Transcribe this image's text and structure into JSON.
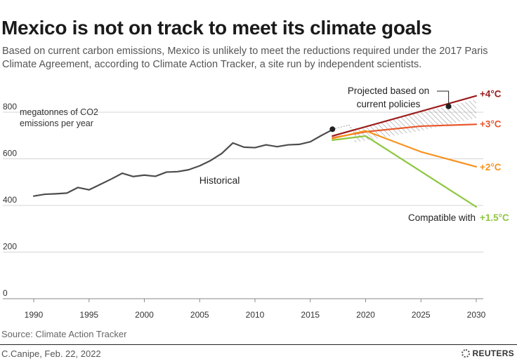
{
  "header": {
    "title": "Mexico is not on track to meet its climate goals",
    "subtitle": "Based on current carbon emissions, Mexico is unlikely to meet the reductions required under the 2017 Paris Climate Agreement, according to Climate Action Tracker, a site run by independent scientists."
  },
  "footer": {
    "source": "Source: Climate Action Tracker",
    "credit": "C.Canipe, Feb. 22, 2022",
    "logo": "REUTERS"
  },
  "chart_data": {
    "type": "line",
    "title": "Mexico is not on track to meet its climate goals",
    "ylabel": "megatonnes of CO2 emissions per year",
    "ylabel_lines": [
      "megatonnes of CO2",
      "emissions per year"
    ],
    "xlabel": "",
    "xlim": [
      1989,
      2030.5
    ],
    "ylim": [
      0,
      800
    ],
    "x_ticks": [
      1990,
      1995,
      2000,
      2005,
      2010,
      2015,
      2020,
      2025,
      2030
    ],
    "y_ticks": [
      0,
      200,
      400,
      600,
      800
    ],
    "grid": "horizontal",
    "series": [
      {
        "name": "Historical",
        "label": "Historical",
        "color": "#4d4d4d",
        "x": [
          1990,
          1991,
          1992,
          1993,
          1994,
          1995,
          1996,
          1997,
          1998,
          1999,
          2000,
          2001,
          2002,
          2003,
          2004,
          2005,
          2006,
          2007,
          2008,
          2009,
          2010,
          2011,
          2012,
          2013,
          2014,
          2015,
          2016,
          2017
        ],
        "y": [
          440,
          448,
          450,
          453,
          477,
          467,
          490,
          513,
          538,
          524,
          530,
          525,
          543,
          545,
          553,
          570,
          593,
          623,
          668,
          650,
          648,
          660,
          652,
          660,
          662,
          673,
          700,
          725
        ]
      },
      {
        "name": "+4°C",
        "label": "+4°C",
        "color": "#9b1b1b",
        "x": [
          2017,
          2030
        ],
        "y": [
          698,
          870
        ]
      },
      {
        "name": "+3°C",
        "label": "+3°C",
        "color": "#e8562a",
        "x": [
          2017,
          2020,
          2025,
          2030
        ],
        "y": [
          690,
          716,
          740,
          748
        ]
      },
      {
        "name": "+2°C",
        "label": "+2°C",
        "color": "#f7931e",
        "x": [
          2017,
          2020,
          2025,
          2030
        ],
        "y": [
          687,
          720,
          630,
          566
        ]
      },
      {
        "name": "+1.5°C",
        "label": "+1.5°C",
        "color": "#8dc63f",
        "x": [
          2017,
          2020,
          2030
        ],
        "y": [
          680,
          698,
          394
        ]
      }
    ],
    "projection_band": {
      "name": "Projected based on current policies",
      "x": [
        2019,
        2025,
        2030
      ],
      "y_low": [
        670,
        720,
        775
      ],
      "y_high": [
        720,
        800,
        855
      ]
    },
    "annotations": [
      {
        "text_lines": [
          "Projected based on",
          "current policies"
        ],
        "point": [
          2027.5,
          825
        ]
      },
      {
        "text": "Compatible with",
        "anchor_series": "+1.5°C"
      }
    ],
    "markers": [
      {
        "x": 2017,
        "y": 727
      },
      {
        "x": 2027.5,
        "y": 825
      }
    ]
  }
}
